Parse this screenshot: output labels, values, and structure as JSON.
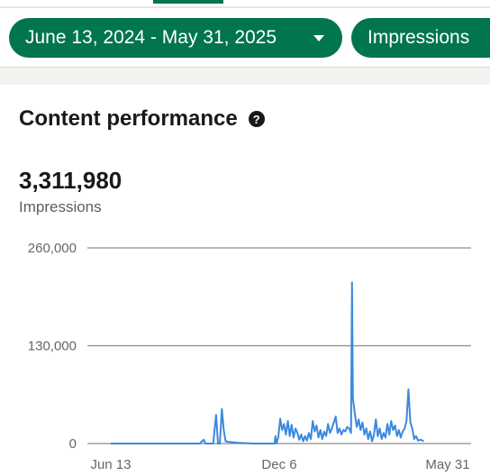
{
  "filters": {
    "date_range": "June 13, 2024 - May 31, 2025",
    "metric": "Impressions"
  },
  "card": {
    "title": "Content performance",
    "help_icon": "question-circle-icon",
    "total": "3,311,980",
    "total_label": "Impressions"
  },
  "colors": {
    "pill": "#01754f",
    "line": "#3b88e0",
    "grid": "#8c8c8c"
  },
  "chart_data": {
    "type": "line",
    "x_start": "2024-06-13",
    "x_end": "2025-05-31",
    "ylim": [
      0,
      260000
    ],
    "y_ticks": [
      {
        "value": 0,
        "label": "0"
      },
      {
        "value": 130000,
        "label": "130,000"
      },
      {
        "value": 260000,
        "label": "260,000"
      }
    ],
    "x_ticks": [
      {
        "date": "2024-06-13",
        "label": "Jun 13"
      },
      {
        "date": "2024-12-06",
        "label": "Dec 6"
      },
      {
        "date": "2025-05-31",
        "label": "May 31"
      }
    ],
    "grid": true,
    "series": [
      {
        "points": [
          [
            "2024-06-13",
            0
          ],
          [
            "2024-07-01",
            0
          ],
          [
            "2024-07-20",
            0
          ],
          [
            "2024-08-10",
            0
          ],
          [
            "2024-08-28",
            0
          ],
          [
            "2024-09-14",
            0
          ],
          [
            "2024-09-18",
            5000
          ],
          [
            "2024-09-20",
            0
          ],
          [
            "2024-09-28",
            0
          ],
          [
            "2024-10-01",
            38000
          ],
          [
            "2024-10-03",
            0
          ],
          [
            "2024-10-05",
            0
          ],
          [
            "2024-10-07",
            46000
          ],
          [
            "2024-10-09",
            18000
          ],
          [
            "2024-10-11",
            3000
          ],
          [
            "2024-10-15",
            2000
          ],
          [
            "2024-10-25",
            1000
          ],
          [
            "2024-11-10",
            0
          ],
          [
            "2024-11-28",
            0
          ],
          [
            "2024-12-01",
            0
          ],
          [
            "2024-12-02",
            10000
          ],
          [
            "2024-12-03",
            0
          ],
          [
            "2024-12-05",
            8000
          ],
          [
            "2024-12-07",
            33000
          ],
          [
            "2024-12-09",
            18000
          ],
          [
            "2024-12-11",
            26000
          ],
          [
            "2024-12-13",
            12000
          ],
          [
            "2024-12-15",
            30000
          ],
          [
            "2024-12-17",
            10000
          ],
          [
            "2024-12-19",
            25000
          ],
          [
            "2024-12-21",
            8000
          ],
          [
            "2024-12-23",
            20000
          ],
          [
            "2024-12-25",
            14000
          ],
          [
            "2024-12-27",
            5000
          ],
          [
            "2024-12-29",
            12000
          ],
          [
            "2024-12-31",
            3000
          ],
          [
            "2025-01-02",
            10000
          ],
          [
            "2025-01-04",
            4000
          ],
          [
            "2025-01-06",
            14000
          ],
          [
            "2025-01-08",
            6000
          ],
          [
            "2025-01-10",
            30000
          ],
          [
            "2025-01-12",
            16000
          ],
          [
            "2025-01-14",
            24000
          ],
          [
            "2025-01-16",
            8000
          ],
          [
            "2025-01-18",
            18000
          ],
          [
            "2025-01-20",
            6000
          ],
          [
            "2025-01-22",
            16000
          ],
          [
            "2025-01-24",
            10000
          ],
          [
            "2025-01-26",
            26000
          ],
          [
            "2025-01-28",
            14000
          ],
          [
            "2025-01-30",
            20000
          ],
          [
            "2025-02-01",
            28000
          ],
          [
            "2025-02-03",
            36000
          ],
          [
            "2025-02-05",
            14000
          ],
          [
            "2025-02-07",
            20000
          ],
          [
            "2025-02-09",
            12000
          ],
          [
            "2025-02-11",
            18000
          ],
          [
            "2025-02-13",
            16000
          ],
          [
            "2025-02-15",
            22000
          ],
          [
            "2025-02-17",
            20000
          ],
          [
            "2025-02-19",
            14000
          ],
          [
            "2025-02-20",
            214000
          ],
          [
            "2025-02-21",
            60000
          ],
          [
            "2025-02-23",
            40000
          ],
          [
            "2025-02-25",
            22000
          ],
          [
            "2025-02-27",
            32000
          ],
          [
            "2025-03-01",
            18000
          ],
          [
            "2025-03-03",
            28000
          ],
          [
            "2025-03-05",
            12000
          ],
          [
            "2025-03-07",
            20000
          ],
          [
            "2025-03-09",
            6000
          ],
          [
            "2025-03-11",
            16000
          ],
          [
            "2025-03-13",
            3000
          ],
          [
            "2025-03-15",
            12000
          ],
          [
            "2025-03-17",
            32000
          ],
          [
            "2025-03-19",
            10000
          ],
          [
            "2025-03-21",
            20000
          ],
          [
            "2025-03-23",
            6000
          ],
          [
            "2025-03-25",
            14000
          ],
          [
            "2025-03-27",
            8000
          ],
          [
            "2025-03-29",
            26000
          ],
          [
            "2025-03-31",
            12000
          ],
          [
            "2025-04-02",
            30000
          ],
          [
            "2025-04-04",
            18000
          ],
          [
            "2025-04-06",
            24000
          ],
          [
            "2025-04-08",
            10000
          ],
          [
            "2025-04-10",
            18000
          ],
          [
            "2025-04-12",
            8000
          ],
          [
            "2025-04-14",
            16000
          ],
          [
            "2025-04-16",
            20000
          ],
          [
            "2025-04-18",
            30000
          ],
          [
            "2025-04-20",
            72000
          ],
          [
            "2025-04-22",
            28000
          ],
          [
            "2025-04-24",
            20000
          ],
          [
            "2025-04-26",
            6000
          ],
          [
            "2025-04-28",
            10000
          ],
          [
            "2025-04-30",
            4000
          ],
          [
            "2025-05-03",
            5000
          ],
          [
            "2025-05-06",
            3000
          ]
        ]
      }
    ]
  }
}
